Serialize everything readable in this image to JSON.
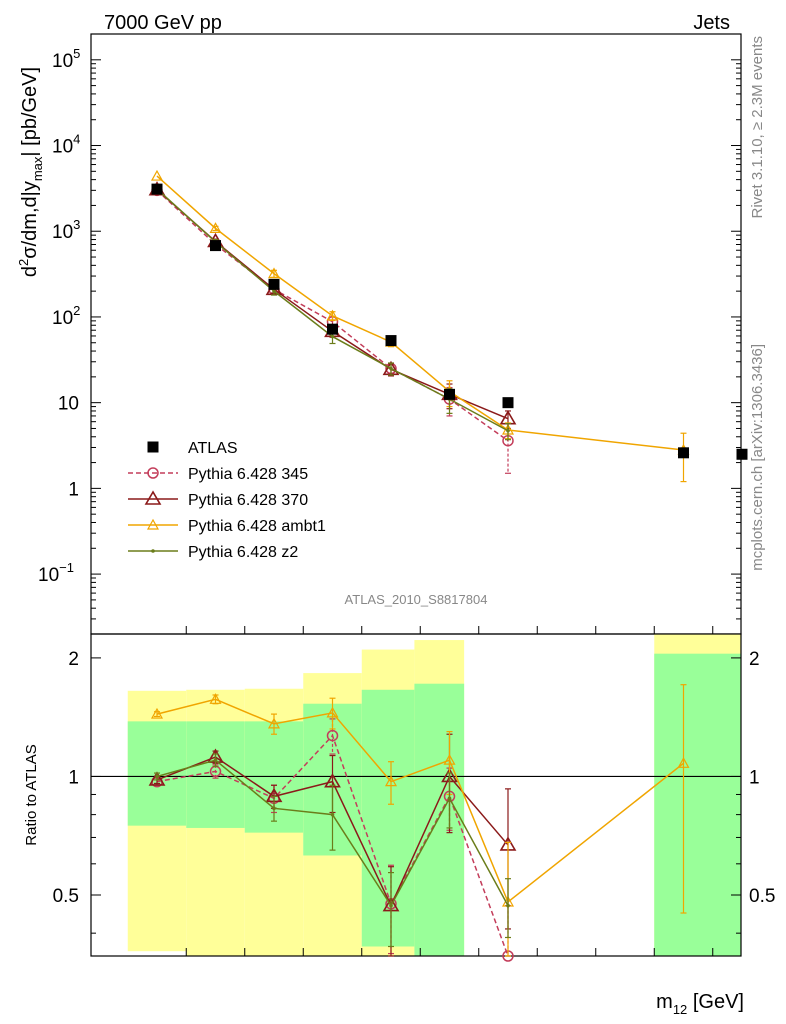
{
  "header": {
    "left": "7000 GeV pp",
    "right": "Jets"
  },
  "side_labels": {
    "rivet": "Rivet 3.1.10, ≥ 2.3M events",
    "mcplots": "mcplots.cern.ch [arXiv:1306.3436]"
  },
  "chart_data": [
    {
      "type": "line",
      "panel": "main",
      "title": "",
      "watermark": "ATLAS_2010_S8817804",
      "ylabel": "d²σ/dm,d|y_max| [pb/GeV]",
      "ylabel_parts": {
        "a": "d",
        "b": "2",
        "c": "σ/dm,d|y",
        "d": "max",
        "e": "| [pb/GeV]"
      },
      "yscale": "log",
      "ylim": [
        0.02,
        200000
      ],
      "yticks": [
        {
          "value": 100000,
          "label": "10",
          "exp": "5"
        },
        {
          "value": 10000,
          "label": "10",
          "exp": "4"
        },
        {
          "value": 1000,
          "label": "10",
          "exp": "3"
        },
        {
          "value": 100,
          "label": "10",
          "exp": "2"
        },
        {
          "value": 10,
          "label": "10",
          "exp": ""
        },
        {
          "value": 1,
          "label": "1",
          "exp": ""
        },
        {
          "value": 0.1,
          "label": "10",
          "exp": "−1"
        }
      ],
      "x_bins": [
        1,
        2,
        3,
        4,
        5,
        6,
        7,
        8,
        9,
        10,
        11
      ],
      "legend_position": "lower-left",
      "series": [
        {
          "name": "ATLAS",
          "color": "#000000",
          "marker": "square",
          "line": "none",
          "x": [
            1,
            2,
            3,
            4,
            5,
            6,
            7,
            10,
            11
          ],
          "values": [
            3100,
            680,
            240,
            72,
            53,
            12.5,
            10,
            2.6,
            2.5
          ]
        },
        {
          "name": "Pythia 6.428 345",
          "color": "#c33d5a",
          "marker": "circle",
          "line": "dashed",
          "x": [
            1,
            2,
            3,
            4,
            5,
            6,
            7
          ],
          "values": [
            3000,
            700,
            210,
            88,
            25,
            11,
            3.6
          ],
          "err": [
            0,
            60,
            20,
            12,
            4,
            4,
            2.1
          ]
        },
        {
          "name": "Pythia 6.428 370",
          "color": "#8b1a1a",
          "marker": "triangle",
          "line": "solid",
          "x": [
            1,
            2,
            3,
            4,
            5,
            6,
            7
          ],
          "values": [
            3050,
            760,
            210,
            68,
            24.5,
            12.5,
            6.5
          ],
          "err": [
            0,
            50,
            20,
            10,
            4,
            4,
            1.5
          ]
        },
        {
          "name": "Pythia 6.428 ambt1",
          "color": "#f0a500",
          "marker": "triangle-open",
          "line": "solid",
          "x": [
            1,
            2,
            3,
            4,
            5,
            6,
            7,
            10
          ],
          "values": [
            4400,
            1080,
            320,
            103,
            51,
            13.5,
            4.8,
            2.8
          ],
          "err": [
            0,
            60,
            30,
            12,
            6,
            4.5,
            1,
            1.6
          ]
        },
        {
          "name": "Pythia 6.428 z2",
          "color": "#6b7d1a",
          "marker": "dot",
          "line": "solid",
          "x": [
            1,
            2,
            3,
            4,
            5,
            6,
            7
          ],
          "values": [
            3100,
            750,
            200,
            59,
            25,
            11,
            4.7
          ],
          "err": [
            0,
            50,
            20,
            10,
            4,
            3.5,
            1
          ]
        }
      ]
    },
    {
      "type": "line",
      "panel": "ratio",
      "ylabel": "Ratio to ATLAS",
      "xlabel": "m₁₂ [GeV]",
      "xlabel_parts": {
        "a": "m",
        "b": "12",
        "c": " [GeV]"
      },
      "yscale": "log",
      "ylim": [
        0.35,
        2.3
      ],
      "yticks": [
        {
          "value": 0.5,
          "label": "0.5"
        },
        {
          "value": 1,
          "label": "1"
        },
        {
          "value": 2,
          "label": "2"
        }
      ],
      "bands": [
        {
          "x0": 0.5,
          "x1": 1.5,
          "yellow": [
            0.36,
            1.65
          ],
          "green": [
            0.75,
            1.38
          ]
        },
        {
          "x0": 1.5,
          "x1": 2.5,
          "yellow": [
            0.34,
            1.66
          ],
          "green": [
            0.74,
            1.38
          ]
        },
        {
          "x0": 2.5,
          "x1": 3.5,
          "yellow": [
            0.34,
            1.67
          ],
          "green": [
            0.72,
            1.38
          ]
        },
        {
          "x0": 3.5,
          "x1": 4.5,
          "yellow": [
            0.34,
            1.83
          ],
          "green": [
            0.63,
            1.53
          ]
        },
        {
          "x0": 4.5,
          "x1": 5.4,
          "yellow": [
            0.34,
            2.1
          ],
          "green": [
            0.37,
            1.66
          ]
        },
        {
          "x0": 5.4,
          "x1": 6.25,
          "yellow": [
            0.34,
            2.22
          ],
          "green": [
            0.34,
            1.72
          ]
        },
        {
          "x0": 9.5,
          "x1": 11.3,
          "yellow": [
            0.34,
            2.35
          ],
          "green": [
            0.34,
            2.05
          ]
        }
      ],
      "series": [
        {
          "name": "Pythia 6.428 345",
          "color": "#c33d5a",
          "marker": "circle",
          "line": "dashed",
          "x": [
            1,
            2,
            3,
            4,
            5,
            6,
            7
          ],
          "values": [
            0.97,
            1.03,
            0.88,
            1.27,
            0.475,
            0.89,
            0.33
          ],
          "err": [
            0.02,
            0.04,
            0.07,
            0.13,
            0.12,
            0.16,
            0.14
          ]
        },
        {
          "name": "Pythia 6.428 370",
          "color": "#8b1a1a",
          "marker": "triangle",
          "line": "solid",
          "x": [
            1,
            2,
            3,
            4,
            5,
            6,
            7
          ],
          "values": [
            0.98,
            1.12,
            0.89,
            0.97,
            0.47,
            1.0,
            0.67
          ],
          "err": [
            0.02,
            0.04,
            0.06,
            0.16,
            0.12,
            0.28,
            0.26
          ]
        },
        {
          "name": "Pythia 6.428 ambt1",
          "color": "#f0a500",
          "marker": "triangle-open",
          "line": "solid",
          "x": [
            1,
            2,
            3,
            4,
            5,
            6,
            7,
            10
          ],
          "values": [
            1.44,
            1.57,
            1.36,
            1.45,
            0.97,
            1.1,
            0.48,
            1.08
          ],
          "err": [
            0.02,
            0.04,
            0.08,
            0.13,
            0.12,
            0.2,
            0.2,
            0.63
          ]
        },
        {
          "name": "Pythia 6.428 z2",
          "color": "#6b7d1a",
          "marker": "dot",
          "line": "solid",
          "x": [
            1,
            2,
            3,
            4,
            5,
            6,
            7
          ],
          "values": [
            1.0,
            1.1,
            0.83,
            0.8,
            0.47,
            0.88,
            0.47
          ],
          "err": [
            0.02,
            0.04,
            0.06,
            0.15,
            0.1,
            0.14,
            0.08
          ]
        }
      ]
    }
  ]
}
